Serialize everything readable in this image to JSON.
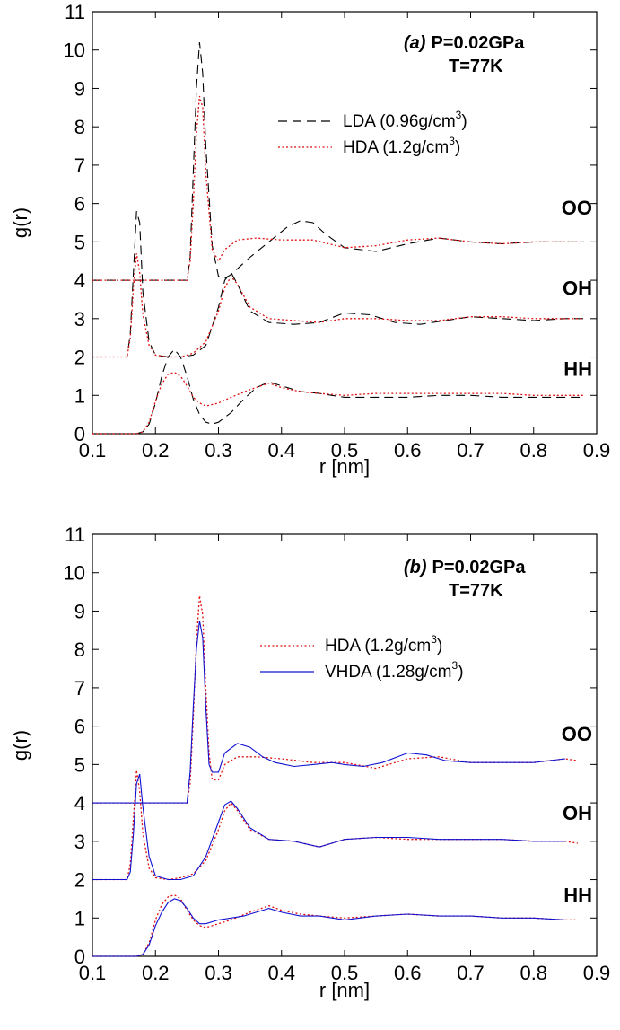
{
  "chart_data": [
    {
      "type": "line",
      "panel": "(a)",
      "annotation": {
        "label": "(a)",
        "line1": "P=0.02GPa",
        "line2": "T=77K"
      },
      "xlabel": "r [nm]",
      "ylabel": "g(r)",
      "xlim": [
        0.1,
        0.9
      ],
      "ylim": [
        0,
        11
      ],
      "xticks": [
        "0.1",
        "0.2",
        "0.3",
        "0.4",
        "0.5",
        "0.6",
        "0.7",
        "0.8",
        "0.9"
      ],
      "yticks": [
        "0",
        "1",
        "2",
        "3",
        "4",
        "5",
        "6",
        "7",
        "8",
        "9",
        "10",
        "11"
      ],
      "legend": [
        {
          "name": "LDA (0.96g/cm",
          "sup": "3",
          "close": ")",
          "style": "dashed",
          "color": "#000000"
        },
        {
          "name": "HDA (1.2g/cm",
          "sup": "3",
          "close": ")",
          "style": "dotted",
          "color": "#e01010"
        }
      ],
      "curve_labels": [
        {
          "text": "OO",
          "y": 5.9
        },
        {
          "text": "OH",
          "y": 3.8
        },
        {
          "text": "HH",
          "y": 1.7
        }
      ],
      "series": [
        {
          "name": "LDA OO",
          "color": "#000000",
          "style": "dashed",
          "x": [
            0.1,
            0.25,
            0.255,
            0.26,
            0.265,
            0.27,
            0.275,
            0.28,
            0.29,
            0.3,
            0.31,
            0.32,
            0.33,
            0.35,
            0.38,
            0.41,
            0.43,
            0.45,
            0.47,
            0.5,
            0.55,
            0.6,
            0.65,
            0.7,
            0.75,
            0.8,
            0.85,
            0.88
          ],
          "y": [
            4,
            4,
            4.6,
            6.8,
            9.0,
            10.2,
            9.4,
            7.5,
            4.9,
            4.1,
            4.05,
            4.15,
            4.3,
            4.6,
            5.0,
            5.4,
            5.55,
            5.5,
            5.2,
            4.85,
            4.75,
            4.95,
            5.1,
            5.0,
            4.95,
            5.0,
            5.0,
            5.0
          ]
        },
        {
          "name": "HDA OO",
          "color": "#e01010",
          "style": "dotted",
          "x": [
            0.1,
            0.25,
            0.255,
            0.26,
            0.265,
            0.27,
            0.275,
            0.28,
            0.29,
            0.3,
            0.31,
            0.33,
            0.36,
            0.4,
            0.45,
            0.5,
            0.55,
            0.6,
            0.65,
            0.7,
            0.75,
            0.8,
            0.85,
            0.88
          ],
          "y": [
            4,
            4,
            4.5,
            6.0,
            7.8,
            8.8,
            8.5,
            6.8,
            4.8,
            4.5,
            4.8,
            5.05,
            5.1,
            5.05,
            5.05,
            4.85,
            4.9,
            5.05,
            5.1,
            5.0,
            4.95,
            5.0,
            5.0,
            5.0
          ]
        },
        {
          "name": "LDA OH",
          "color": "#000000",
          "style": "dashed",
          "x": [
            0.1,
            0.155,
            0.16,
            0.165,
            0.17,
            0.175,
            0.18,
            0.19,
            0.2,
            0.22,
            0.24,
            0.26,
            0.28,
            0.3,
            0.31,
            0.32,
            0.33,
            0.35,
            0.38,
            0.42,
            0.46,
            0.5,
            0.54,
            0.58,
            0.62,
            0.66,
            0.7,
            0.75,
            0.8,
            0.85,
            0.88
          ],
          "y": [
            2,
            2,
            2.6,
            4.2,
            5.8,
            5.5,
            3.7,
            2.4,
            2.05,
            2.0,
            2.0,
            2.05,
            2.3,
            3.3,
            4.0,
            4.2,
            3.9,
            3.2,
            2.9,
            2.85,
            2.9,
            3.15,
            3.1,
            2.9,
            2.85,
            2.95,
            3.05,
            3.0,
            2.95,
            3.0,
            3.0
          ]
        },
        {
          "name": "HDA OH",
          "color": "#e01010",
          "style": "dotted",
          "x": [
            0.1,
            0.155,
            0.16,
            0.165,
            0.17,
            0.175,
            0.18,
            0.19,
            0.2,
            0.22,
            0.24,
            0.26,
            0.28,
            0.3,
            0.31,
            0.32,
            0.33,
            0.35,
            0.38,
            0.42,
            0.46,
            0.5,
            0.55,
            0.6,
            0.65,
            0.7,
            0.75,
            0.8,
            0.85,
            0.88
          ],
          "y": [
            2,
            2,
            2.5,
            3.8,
            4.7,
            4.2,
            3.1,
            2.3,
            2.05,
            2.0,
            2.0,
            2.1,
            2.4,
            3.2,
            3.8,
            4.1,
            3.9,
            3.3,
            3.0,
            2.95,
            2.9,
            3.0,
            3.0,
            2.95,
            2.95,
            3.05,
            3.05,
            3.0,
            3.0,
            3.0
          ]
        },
        {
          "name": "LDA HH",
          "color": "#000000",
          "style": "dashed",
          "x": [
            0.1,
            0.17,
            0.18,
            0.19,
            0.2,
            0.21,
            0.22,
            0.23,
            0.24,
            0.25,
            0.26,
            0.27,
            0.28,
            0.29,
            0.3,
            0.32,
            0.34,
            0.36,
            0.38,
            0.4,
            0.43,
            0.46,
            0.5,
            0.55,
            0.6,
            0.65,
            0.7,
            0.75,
            0.8,
            0.85,
            0.88
          ],
          "y": [
            0,
            0,
            0.05,
            0.25,
            0.8,
            1.5,
            2.0,
            2.2,
            2.0,
            1.5,
            0.9,
            0.5,
            0.3,
            0.25,
            0.3,
            0.55,
            0.9,
            1.2,
            1.35,
            1.25,
            1.1,
            1.05,
            0.95,
            0.95,
            0.95,
            1.0,
            1.0,
            0.95,
            0.95,
            0.95,
            0.95
          ]
        },
        {
          "name": "HDA HH",
          "color": "#e01010",
          "style": "dotted",
          "x": [
            0.1,
            0.17,
            0.18,
            0.19,
            0.2,
            0.21,
            0.22,
            0.23,
            0.24,
            0.25,
            0.26,
            0.27,
            0.28,
            0.3,
            0.32,
            0.35,
            0.38,
            0.4,
            0.43,
            0.46,
            0.5,
            0.55,
            0.6,
            0.65,
            0.7,
            0.75,
            0.8,
            0.85,
            0.88
          ],
          "y": [
            0,
            0,
            0.05,
            0.3,
            0.85,
            1.3,
            1.55,
            1.6,
            1.5,
            1.25,
            0.95,
            0.8,
            0.72,
            0.8,
            0.95,
            1.15,
            1.32,
            1.2,
            1.1,
            1.05,
            1.0,
            1.05,
            1.05,
            1.05,
            1.05,
            1.05,
            1.0,
            1.0,
            1.0
          ]
        }
      ]
    },
    {
      "type": "line",
      "panel": "(b)",
      "annotation": {
        "label": "(b)",
        "line1": "P=0.02GPa",
        "line2": "T=77K"
      },
      "xlabel": "r [nm]",
      "ylabel": "g(r)",
      "xlim": [
        0.1,
        0.9
      ],
      "ylim": [
        0,
        11
      ],
      "xticks": [
        "0.1",
        "0.2",
        "0.3",
        "0.4",
        "0.5",
        "0.6",
        "0.7",
        "0.8",
        "0.9"
      ],
      "yticks": [
        "0",
        "1",
        "2",
        "3",
        "4",
        "5",
        "6",
        "7",
        "8",
        "9",
        "10",
        "11"
      ],
      "legend": [
        {
          "name": "HDA (1.2g/cm",
          "sup": "3",
          "close": ")",
          "style": "dotted",
          "color": "#e01010"
        },
        {
          "name": "VHDA (1.28g/cm",
          "sup": "3",
          "close": ")",
          "style": "solid",
          "color": "#1010d0"
        }
      ],
      "curve_labels": [
        {
          "text": "OO",
          "y": 5.8
        },
        {
          "text": "OH",
          "y": 3.75
        },
        {
          "text": "HH",
          "y": 1.6
        }
      ],
      "series": [
        {
          "name": "HDA OO",
          "color": "#e01010",
          "style": "dotted",
          "x": [
            0.1,
            0.25,
            0.255,
            0.26,
            0.265,
            0.27,
            0.275,
            0.28,
            0.285,
            0.29,
            0.3,
            0.31,
            0.33,
            0.36,
            0.4,
            0.45,
            0.5,
            0.55,
            0.6,
            0.65,
            0.7,
            0.75,
            0.8,
            0.85,
            0.87
          ],
          "y": [
            4,
            4,
            4.5,
            6.2,
            8.2,
            9.4,
            8.9,
            7.0,
            5.3,
            4.6,
            4.6,
            5.0,
            5.2,
            5.2,
            5.15,
            5.05,
            5.05,
            4.9,
            5.15,
            5.2,
            5.05,
            5.05,
            5.05,
            5.15,
            5.1
          ]
        },
        {
          "name": "VHDA OO",
          "color": "#1010d0",
          "style": "solid",
          "x": [
            0.1,
            0.25,
            0.255,
            0.26,
            0.265,
            0.27,
            0.275,
            0.28,
            0.285,
            0.29,
            0.3,
            0.31,
            0.33,
            0.35,
            0.37,
            0.39,
            0.42,
            0.45,
            0.48,
            0.5,
            0.53,
            0.56,
            0.6,
            0.63,
            0.66,
            0.7,
            0.75,
            0.8,
            0.85
          ],
          "y": [
            4,
            4,
            4.8,
            6.5,
            8.0,
            8.75,
            8.3,
            6.5,
            5.0,
            4.8,
            4.8,
            5.3,
            5.55,
            5.45,
            5.2,
            5.05,
            4.95,
            5.0,
            5.05,
            5.0,
            4.95,
            5.05,
            5.3,
            5.25,
            5.1,
            5.05,
            5.05,
            5.05,
            5.15
          ]
        },
        {
          "name": "HDA OH",
          "color": "#e01010",
          "style": "dotted",
          "x": [
            0.1,
            0.155,
            0.16,
            0.165,
            0.17,
            0.175,
            0.18,
            0.19,
            0.2,
            0.22,
            0.24,
            0.26,
            0.28,
            0.3,
            0.31,
            0.32,
            0.33,
            0.35,
            0.38,
            0.42,
            0.46,
            0.5,
            0.55,
            0.6,
            0.65,
            0.7,
            0.75,
            0.8,
            0.85,
            0.87
          ],
          "y": [
            2,
            2,
            2.4,
            3.6,
            4.85,
            4.3,
            3.2,
            2.3,
            2.05,
            2.0,
            2.05,
            2.15,
            2.5,
            3.3,
            3.8,
            4.0,
            3.8,
            3.3,
            3.05,
            3.0,
            2.85,
            3.05,
            3.1,
            3.05,
            3.05,
            3.05,
            3.05,
            3.0,
            3.0,
            2.95
          ]
        },
        {
          "name": "VHDA OH",
          "color": "#1010d0",
          "style": "solid",
          "x": [
            0.1,
            0.155,
            0.16,
            0.165,
            0.17,
            0.175,
            0.18,
            0.19,
            0.2,
            0.22,
            0.24,
            0.26,
            0.28,
            0.3,
            0.31,
            0.32,
            0.33,
            0.35,
            0.38,
            0.42,
            0.46,
            0.5,
            0.55,
            0.6,
            0.65,
            0.7,
            0.75,
            0.8,
            0.85
          ],
          "y": [
            2,
            2,
            2.2,
            3.2,
            4.5,
            4.75,
            3.9,
            2.6,
            2.1,
            2.0,
            2.0,
            2.1,
            2.6,
            3.5,
            3.95,
            4.05,
            3.85,
            3.35,
            3.05,
            3.0,
            2.85,
            3.05,
            3.1,
            3.1,
            3.05,
            3.05,
            3.05,
            3.0,
            3.0
          ]
        },
        {
          "name": "HDA HH",
          "color": "#e01010",
          "style": "dotted",
          "x": [
            0.1,
            0.17,
            0.18,
            0.19,
            0.2,
            0.21,
            0.22,
            0.23,
            0.24,
            0.25,
            0.26,
            0.27,
            0.28,
            0.3,
            0.32,
            0.35,
            0.38,
            0.4,
            0.43,
            0.46,
            0.5,
            0.55,
            0.6,
            0.65,
            0.7,
            0.75,
            0.8,
            0.85,
            0.87
          ],
          "y": [
            0,
            0,
            0.05,
            0.35,
            0.95,
            1.35,
            1.55,
            1.6,
            1.5,
            1.2,
            0.95,
            0.8,
            0.75,
            0.85,
            0.95,
            1.15,
            1.32,
            1.2,
            1.1,
            1.05,
            1.0,
            1.05,
            1.1,
            1.05,
            1.05,
            1.0,
            1.0,
            0.95,
            0.95
          ]
        },
        {
          "name": "VHDA HH",
          "color": "#1010d0",
          "style": "solid",
          "x": [
            0.1,
            0.17,
            0.18,
            0.19,
            0.2,
            0.21,
            0.22,
            0.23,
            0.24,
            0.25,
            0.26,
            0.27,
            0.28,
            0.3,
            0.32,
            0.34,
            0.36,
            0.38,
            0.4,
            0.43,
            0.46,
            0.5,
            0.55,
            0.6,
            0.65,
            0.7,
            0.75,
            0.8,
            0.85
          ],
          "y": [
            0,
            0,
            0.05,
            0.3,
            0.8,
            1.15,
            1.4,
            1.5,
            1.45,
            1.25,
            1.0,
            0.85,
            0.85,
            0.95,
            1.0,
            1.05,
            1.15,
            1.25,
            1.15,
            1.05,
            1.05,
            0.95,
            1.05,
            1.1,
            1.05,
            1.05,
            1.0,
            1.0,
            0.95
          ]
        }
      ]
    }
  ]
}
